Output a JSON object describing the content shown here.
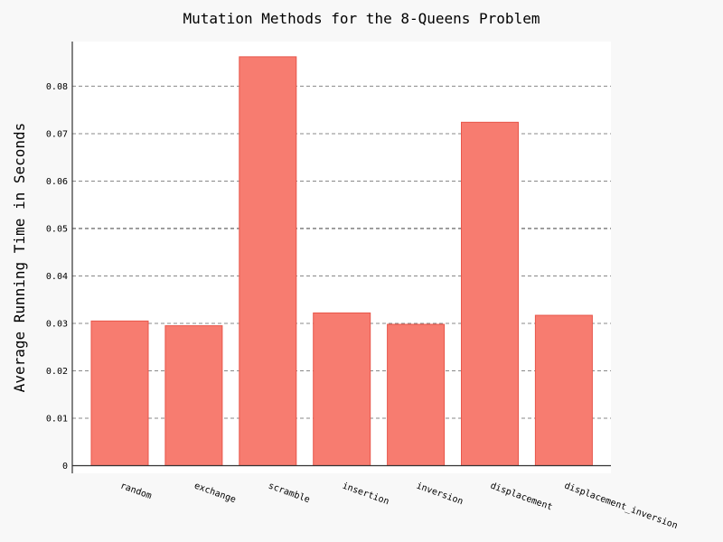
{
  "chart_data": {
    "type": "bar",
    "title": "Mutation Methods for the 8-Queens Problem",
    "xlabel": "",
    "ylabel": "Average Running Time in Seconds",
    "categories": [
      "random",
      "exchange",
      "scramble",
      "insertion",
      "inversion",
      "displacement",
      "displacement_inversion"
    ],
    "values": [
      0.0305,
      0.0295,
      0.0862,
      0.0322,
      0.0298,
      0.0724,
      0.0317
    ],
    "ylim": [
      0,
      0.0877
    ],
    "yticks": [
      0,
      0.01,
      0.02,
      0.03,
      0.04,
      0.05,
      0.06,
      0.07,
      0.08
    ],
    "ytick_labels": [
      "0",
      "0.01",
      "0.02",
      "0.03",
      "0.04",
      "0.05",
      "0.06",
      "0.07",
      "0.08"
    ],
    "grid": true,
    "legend": "none",
    "colors": {
      "bar_fill": "#f77c70",
      "bar_stroke": "#e8564a",
      "grid": "#888888",
      "grid_major": "#555555",
      "axis": "#333333",
      "plot_bg": "#ffffff",
      "page_bg": "#f8f8f8"
    }
  }
}
